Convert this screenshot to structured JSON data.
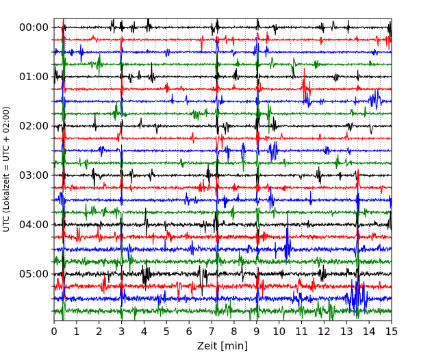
{
  "chart_data": {
    "type": "line",
    "chart_kind": "seismogram helicorder (dayplot)",
    "xlabel": "Zeit  [min]",
    "ylabel": "UTC (Lokalzeit = UTC + 02:00)",
    "xlim": [
      0,
      15
    ],
    "x_ticks": [
      0,
      1,
      2,
      3,
      4,
      5,
      6,
      7,
      8,
      9,
      10,
      11,
      12,
      13,
      14,
      15
    ],
    "x_tick_labels": [
      "0",
      "1",
      "2",
      "3",
      "4",
      "5",
      "6",
      "7",
      "8",
      "9",
      "10",
      "11",
      "12",
      "13",
      "14",
      "15"
    ],
    "y_tick_labels": [
      "00:00",
      "01:00",
      "02:00",
      "03:00",
      "04:00",
      "05:00"
    ],
    "trace_interval_minutes": 15,
    "grid": "vertical dotted lines every 0.5 min",
    "color_cycle": [
      "#000000",
      "#ff0000",
      "#0000ff",
      "#008000"
    ],
    "traces": [
      {
        "start": "00:00",
        "color": "#000000",
        "noise": 0.8
      },
      {
        "start": "00:15",
        "color": "#ff0000",
        "noise": 0.8
      },
      {
        "start": "00:30",
        "color": "#0000ff",
        "noise": 0.8
      },
      {
        "start": "00:45",
        "color": "#008000",
        "noise": 0.9
      },
      {
        "start": "01:00",
        "color": "#000000",
        "noise": 0.8
      },
      {
        "start": "01:15",
        "color": "#ff0000",
        "noise": 0.9
      },
      {
        "start": "01:30",
        "color": "#0000ff",
        "noise": 0.9
      },
      {
        "start": "01:45",
        "color": "#008000",
        "noise": 1.0
      },
      {
        "start": "02:00",
        "color": "#000000",
        "noise": 0.8
      },
      {
        "start": "02:15",
        "color": "#ff0000",
        "noise": 0.9
      },
      {
        "start": "02:30",
        "color": "#0000ff",
        "noise": 0.9
      },
      {
        "start": "02:45",
        "color": "#008000",
        "noise": 1.0
      },
      {
        "start": "03:00",
        "color": "#000000",
        "noise": 1.0
      },
      {
        "start": "03:15",
        "color": "#ff0000",
        "noise": 1.1
      },
      {
        "start": "03:30",
        "color": "#0000ff",
        "noise": 1.2
      },
      {
        "start": "03:45",
        "color": "#008000",
        "noise": 1.3
      },
      {
        "start": "04:00",
        "color": "#000000",
        "noise": 1.6
      },
      {
        "start": "04:15",
        "color": "#ff0000",
        "noise": 1.8
      },
      {
        "start": "04:30",
        "color": "#0000ff",
        "noise": 2.1
      },
      {
        "start": "04:45",
        "color": "#008000",
        "noise": 2.3
      },
      {
        "start": "05:00",
        "color": "#000000",
        "noise": 2.2
      },
      {
        "start": "05:15",
        "color": "#ff0000",
        "noise": 2.3
      },
      {
        "start": "05:30",
        "color": "#0000ff",
        "noise": 2.4
      },
      {
        "start": "05:45",
        "color": "#008000",
        "noise": 2.6
      }
    ],
    "events": [
      {
        "trace": "all",
        "minute": 0.42,
        "amplitude": 9,
        "width": 0.05
      },
      {
        "trace": "all",
        "minute": 3.0,
        "amplitude": 7,
        "width": 0.04
      },
      {
        "trace": "all",
        "minute": 7.25,
        "amplitude": 6,
        "width": 0.05
      },
      {
        "trace": "all",
        "minute": 9.05,
        "amplitude": 6,
        "width": 0.05
      },
      {
        "trace": "03:15-05:45",
        "minute": 13.5,
        "amplitude": 8,
        "width": 0.05
      },
      {
        "trace": "04:30",
        "minute": 10.4,
        "amplitude": 9,
        "width": 0.1
      },
      {
        "trace": "05:00",
        "minute": 4.1,
        "amplitude": 6,
        "width": 0.15
      },
      {
        "trace": "05:45",
        "minute": 12.3,
        "amplitude": 8,
        "width": 0.12
      },
      {
        "trace": "05:30",
        "minute": 13.3,
        "amplitude": 5,
        "width": 0.3
      },
      {
        "trace": "01:30",
        "minute": 14.3,
        "amplitude": 4,
        "width": 0.2
      },
      {
        "trace": "01:45",
        "minute": 6.3,
        "amplitude": 3,
        "width": 0.15
      },
      {
        "trace": "02:00",
        "minute": 9.8,
        "amplitude": 4,
        "width": 0.1
      }
    ]
  }
}
